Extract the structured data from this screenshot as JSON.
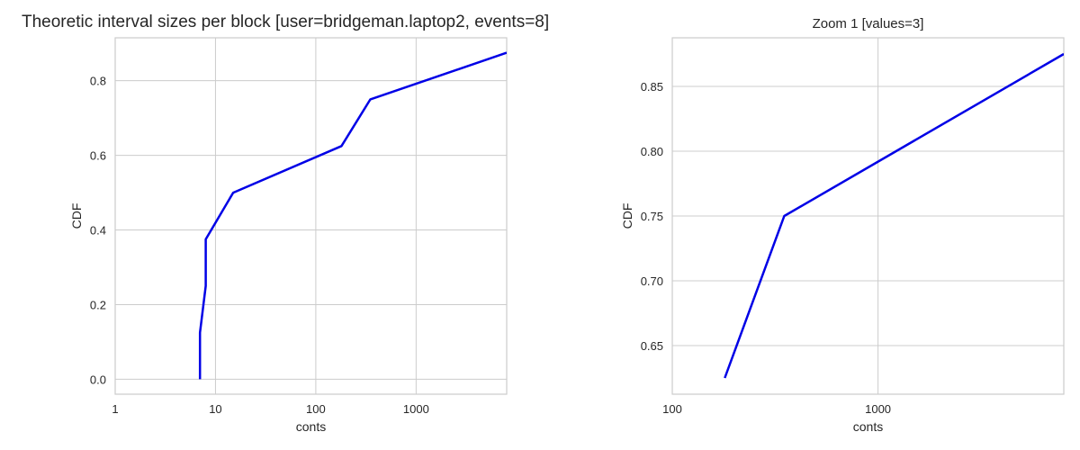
{
  "chart_data": [
    {
      "type": "line",
      "title": "Theoretic interval sizes per block [user=bridgeman.laptop2, events=8]",
      "xlabel": "conts",
      "ylabel": "CDF",
      "xscale": "log",
      "xlim": [
        1,
        8000
      ],
      "ylim": [
        -0.04,
        0.915
      ],
      "xticks": [
        "1",
        "10",
        "100",
        "1000"
      ],
      "xtick_values": [
        1,
        10,
        100,
        1000
      ],
      "yticks": [
        "0.0",
        "0.2",
        "0.4",
        "0.6",
        "0.8"
      ],
      "ytick_values": [
        0.0,
        0.2,
        0.4,
        0.6,
        0.8
      ],
      "grid": true,
      "color": "#0000e6",
      "series": [
        {
          "x": [
            7,
            7,
            8,
            8,
            15,
            180,
            350,
            8000
          ],
          "y": [
            0.0,
            0.125,
            0.25,
            0.375,
            0.5,
            0.625,
            0.75,
            0.875
          ]
        }
      ]
    },
    {
      "type": "line",
      "title": "Zoom 1 [values=3]",
      "xlabel": "conts",
      "ylabel": "CDF",
      "xscale": "log",
      "xlim": [
        100,
        8000
      ],
      "ylim": [
        0.6125,
        0.8875
      ],
      "xticks": [
        "100",
        "1000"
      ],
      "xtick_values": [
        100,
        1000
      ],
      "yticks": [
        "0.65",
        "0.70",
        "0.75",
        "0.80",
        "0.85"
      ],
      "ytick_values": [
        0.65,
        0.7,
        0.75,
        0.8,
        0.85
      ],
      "grid": true,
      "color": "#0000e6",
      "series": [
        {
          "x": [
            180,
            350,
            8000
          ],
          "y": [
            0.625,
            0.75,
            0.875
          ]
        }
      ]
    }
  ]
}
